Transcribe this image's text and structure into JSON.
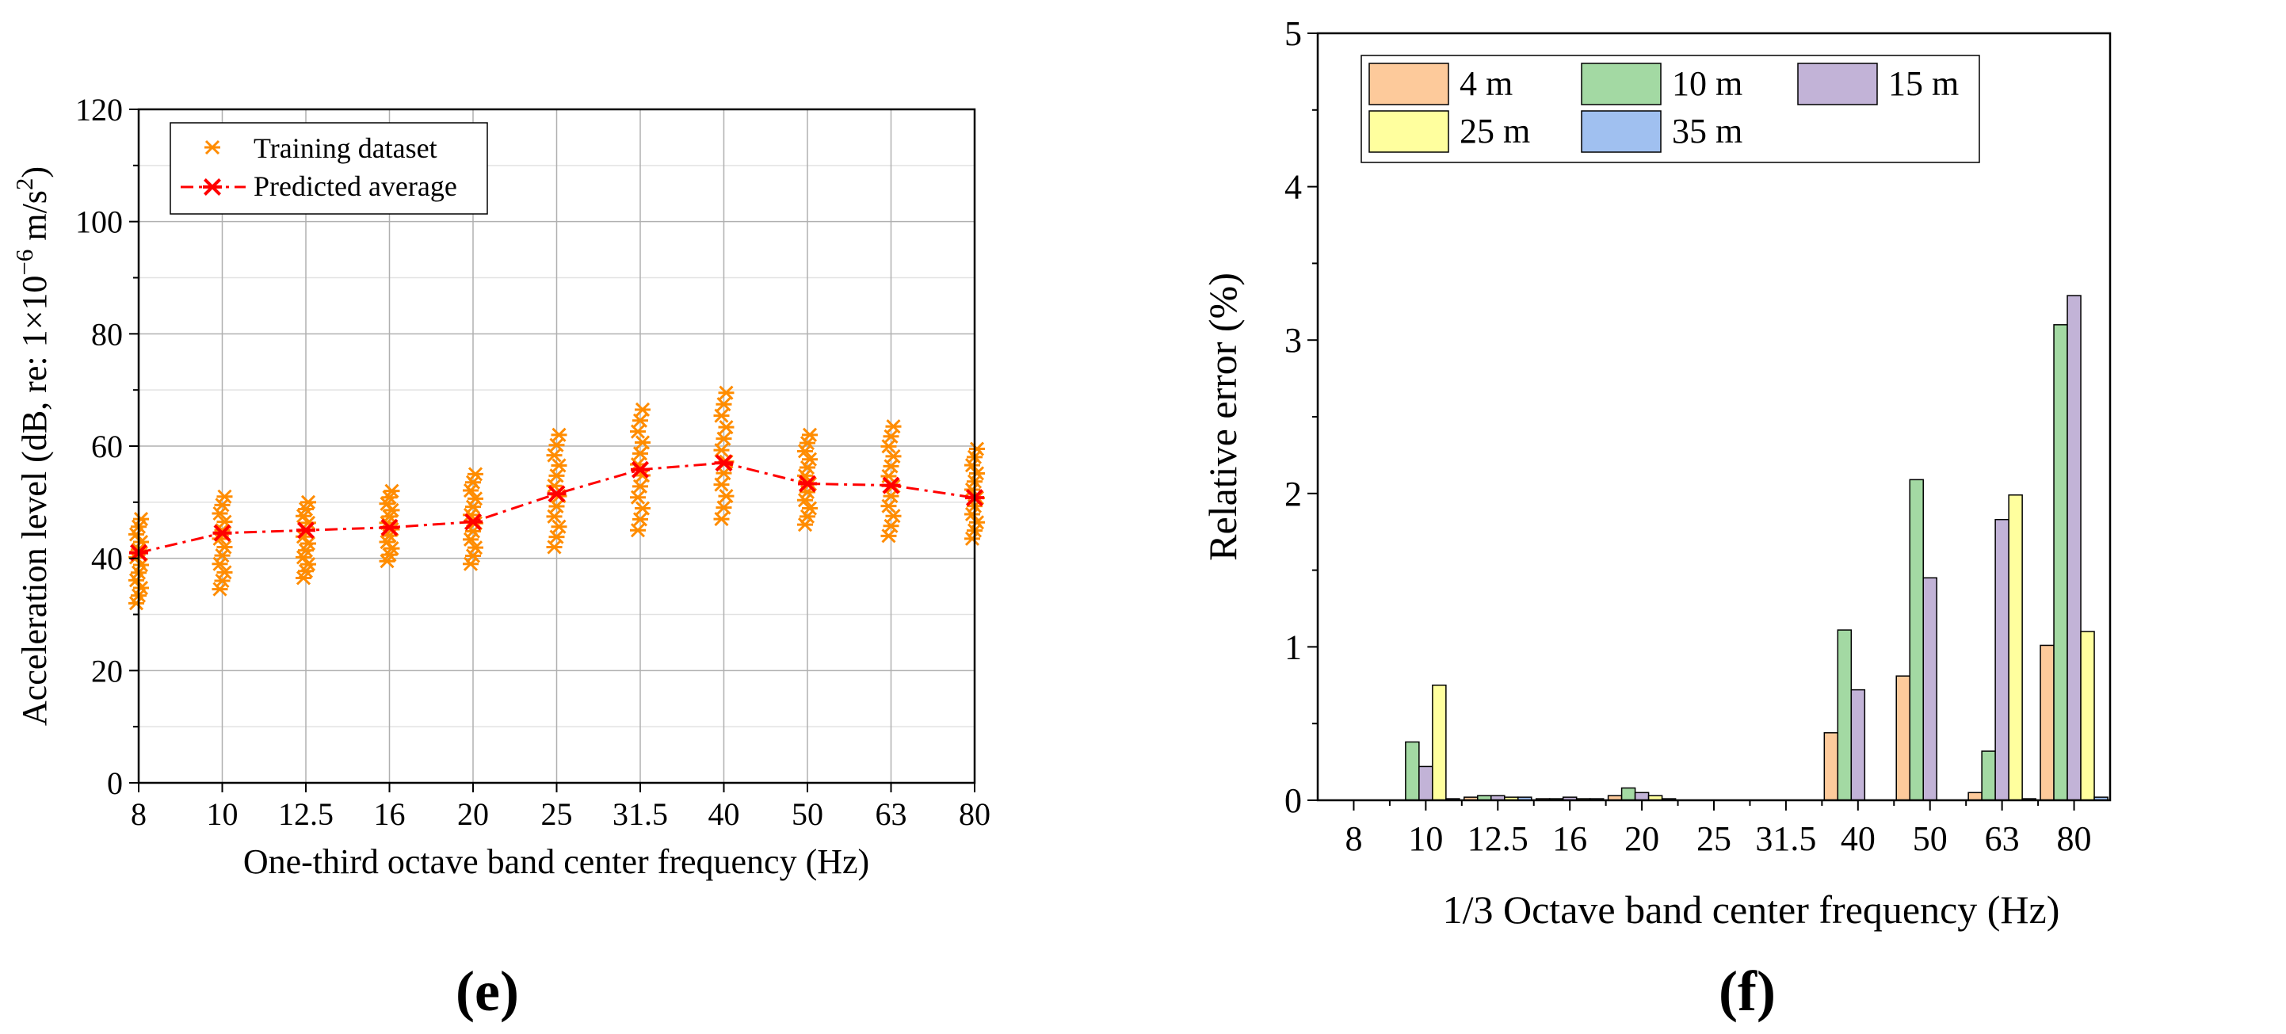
{
  "chart_data": [
    {
      "type": "scatter+line",
      "panel_label": "(e)",
      "xlabel": "One-third octave band center frequency (Hz)",
      "ylabel_prefix": "Acceleration level (dB, re: 1×10",
      "ylabel_exp": "−6",
      "ylabel_suffix": " m/s",
      "ylabel_sup2": "2",
      "ylabel_close": ")",
      "categories": [
        "8",
        "10",
        "12.5",
        "16",
        "20",
        "25",
        "31.5",
        "40",
        "50",
        "63",
        "80"
      ],
      "ylim": [
        0,
        120
      ],
      "yticks": [
        0,
        20,
        40,
        60,
        80,
        100,
        120
      ],
      "grid": true,
      "legend_position": "top-left",
      "legend": [
        "Training dataset",
        "Predicted average"
      ],
      "colors": {
        "training": "#FF8C00",
        "predicted": "#FF0000"
      },
      "training_ranges": [
        [
          32,
          47
        ],
        [
          34.5,
          51
        ],
        [
          36.5,
          50
        ],
        [
          39.5,
          52
        ],
        [
          39,
          55
        ],
        [
          42,
          62
        ],
        [
          45,
          66.5
        ],
        [
          47,
          69.5
        ],
        [
          46,
          62
        ],
        [
          44,
          63.5
        ],
        [
          43.5,
          59.5
        ]
      ],
      "predicted": [
        41,
        44.5,
        45,
        45.5,
        46.5,
        51.5,
        55.8,
        57,
        53.3,
        53,
        50.8
      ]
    },
    {
      "type": "bar",
      "panel_label": "(f)",
      "xlabel": "1/3 Octave band center frequency (Hz)",
      "ylabel": "Relative error (%)",
      "categories": [
        "8",
        "10",
        "12.5",
        "16",
        "20",
        "25",
        "31.5",
        "40",
        "50",
        "63",
        "80"
      ],
      "ylim": [
        0,
        5
      ],
      "yticks": [
        0,
        1,
        2,
        3,
        4,
        5
      ],
      "legend_position": "top-left",
      "series": [
        {
          "name": "4 m",
          "color": "#FDCA9B",
          "values": [
            0,
            0,
            0.02,
            0.01,
            0.03,
            0,
            0,
            0.44,
            0.81,
            0.05,
            1.01
          ]
        },
        {
          "name": "10 m",
          "color": "#A3D9A3",
          "values": [
            0,
            0.38,
            0.03,
            0.01,
            0.08,
            0,
            0,
            1.11,
            2.09,
            0.32,
            3.1
          ]
        },
        {
          "name": "15 m",
          "color": "#C2B3D7",
          "values": [
            0,
            0.22,
            0.03,
            0.02,
            0.05,
            0,
            0,
            0.72,
            1.45,
            1.83,
            3.29
          ]
        },
        {
          "name": "25 m",
          "color": "#FFFF9E",
          "values": [
            0,
            0.75,
            0.02,
            0.01,
            0.03,
            0,
            0,
            0,
            0,
            1.99,
            1.1
          ]
        },
        {
          "name": "35 m",
          "color": "#A0C0F0",
          "values": [
            0,
            0.01,
            0.02,
            0.01,
            0.01,
            0,
            0,
            0,
            0,
            0.01,
            0.02
          ]
        }
      ]
    }
  ]
}
